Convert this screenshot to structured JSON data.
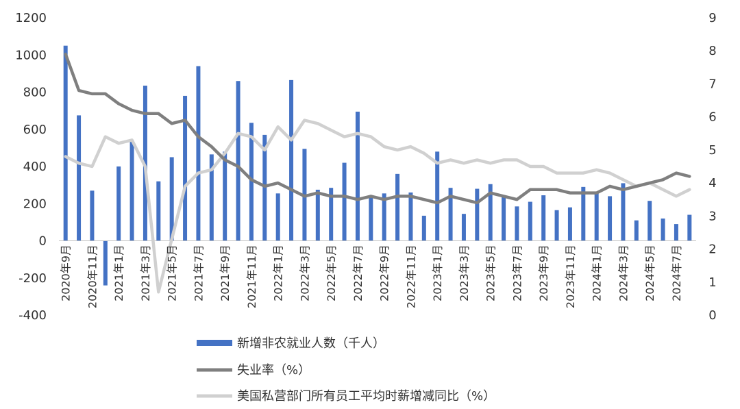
{
  "chart_data": {
    "type": "bar",
    "categories": [
      "2020年9月",
      "2020年10月",
      "2020年11月",
      "2020年12月",
      "2021年1月",
      "2021年2月",
      "2021年3月",
      "2021年4月",
      "2021年5月",
      "2021年6月",
      "2021年7月",
      "2021年8月",
      "2021年9月",
      "2021年10月",
      "2021年11月",
      "2021年12月",
      "2022年1月",
      "2022年2月",
      "2022年3月",
      "2022年4月",
      "2022年5月",
      "2022年6月",
      "2022年7月",
      "2022年8月",
      "2022年9月",
      "2022年10月",
      "2022年11月",
      "2022年12月",
      "2023年1月",
      "2023年2月",
      "2023年3月",
      "2023年4月",
      "2023年5月",
      "2023年6月",
      "2023年7月",
      "2023年8月",
      "2023年9月",
      "2023年10月",
      "2023年11月",
      "2023年12月",
      "2024年1月",
      "2024年2月",
      "2024年3月",
      "2024年4月",
      "2024年5月",
      "2024年6月",
      "2024年7月",
      "2024年8月"
    ],
    "x_tick_labels": [
      "2020年9月",
      "2020年11月",
      "2021年1月",
      "2021年3月",
      "2021年5月",
      "2021年7月",
      "2021年9月",
      "2021年11月",
      "2022年1月",
      "2022年3月",
      "2022年5月",
      "2022年7月",
      "2022年9月",
      "2022年11月",
      "2023年1月",
      "2023年3月",
      "2023年5月",
      "2023年7月",
      "2023年9月",
      "2023年11月",
      "2024年1月",
      "2024年3月",
      "2024年5月",
      "2024年7月"
    ],
    "left_axis": {
      "ylim": [
        -400,
        1200
      ],
      "ticks": [
        -400,
        -200,
        0,
        200,
        400,
        600,
        800,
        1000,
        1200
      ]
    },
    "right_axis": {
      "ylim": [
        0,
        9
      ],
      "ticks": [
        0,
        1,
        2,
        3,
        4,
        5,
        6,
        7,
        8,
        9
      ]
    },
    "grid": false,
    "legend_position": "bottom",
    "series": [
      {
        "name": "新增非农就业人数（千人）",
        "type": "bar",
        "axis": "left",
        "color": "#4472C4",
        "values": [
          1050,
          675,
          270,
          -240,
          400,
          540,
          835,
          320,
          450,
          780,
          940,
          465,
          480,
          860,
          635,
          570,
          255,
          865,
          495,
          275,
          285,
          420,
          695,
          240,
          255,
          360,
          260,
          135,
          480,
          285,
          145,
          280,
          305,
          235,
          185,
          210,
          245,
          165,
          180,
          290,
          260,
          240,
          310,
          110,
          215,
          120,
          90,
          140
        ]
      },
      {
        "name": "失业率（%）",
        "type": "line",
        "axis": "right",
        "color": "#7F7F7F",
        "values": [
          7.9,
          6.8,
          6.7,
          6.7,
          6.4,
          6.2,
          6.1,
          6.1,
          5.8,
          5.9,
          5.4,
          5.1,
          4.7,
          4.5,
          4.1,
          3.9,
          4.0,
          3.8,
          3.6,
          3.7,
          3.6,
          3.6,
          3.5,
          3.6,
          3.5,
          3.6,
          3.6,
          3.5,
          3.4,
          3.6,
          3.5,
          3.4,
          3.7,
          3.6,
          3.5,
          3.8,
          3.8,
          3.8,
          3.7,
          3.7,
          3.7,
          3.9,
          3.8,
          3.9,
          4.0,
          4.1,
          4.3,
          4.2
        ]
      },
      {
        "name": "美国私营部门所有员工平均时薪增减同比（%）",
        "type": "line",
        "axis": "right",
        "color": "#D0D0D0",
        "values": [
          4.8,
          4.6,
          4.5,
          5.4,
          5.2,
          5.3,
          4.5,
          0.7,
          2.3,
          3.9,
          4.3,
          4.4,
          4.9,
          5.5,
          5.4,
          5.0,
          5.7,
          5.3,
          5.9,
          5.8,
          5.6,
          5.4,
          5.5,
          5.4,
          5.1,
          5.0,
          5.1,
          4.9,
          4.6,
          4.7,
          4.6,
          4.7,
          4.6,
          4.7,
          4.7,
          4.5,
          4.5,
          4.3,
          4.3,
          4.3,
          4.4,
          4.3,
          4.1,
          3.9,
          4.0,
          3.8,
          3.6,
          3.8
        ]
      }
    ]
  }
}
